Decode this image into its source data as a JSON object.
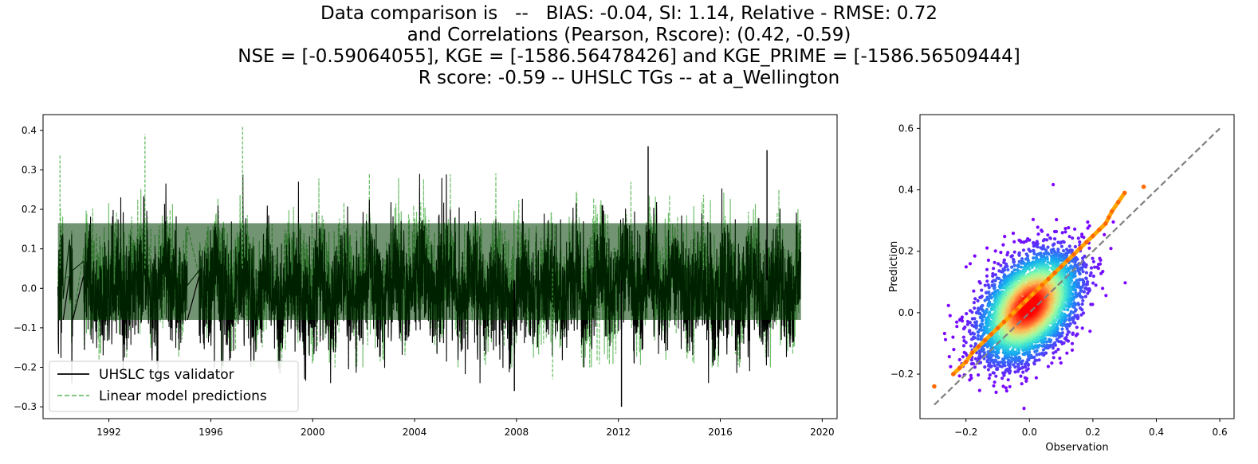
{
  "figure": {
    "title_lines": [
      "Data comparison is   --   BIAS: -0.04, SI: 1.14, Relative - RMSE: 0.72",
      "and Correlations (Pearson, Rscore): (0.42, -0.59)",
      "NSE = [-0.59064055], KGE = [-1586.56478426] and KGE_PRIME = [-1586.56509444]",
      "R score: -0.59 -- UHSLC TGs -- at a_Wellington"
    ]
  },
  "chart_data": [
    {
      "type": "line",
      "title": "",
      "xlabel": "",
      "ylabel": "",
      "xlim": [
        "1989-06-01",
        "2020-08-01"
      ],
      "ylim": [
        -0.33,
        0.44
      ],
      "xticks": [
        "1992",
        "1996",
        "2000",
        "2004",
        "2008",
        "2012",
        "2016",
        "2020"
      ],
      "yticks": [
        "−0.3",
        "−0.2",
        "−0.1",
        "0.0",
        "0.1",
        "0.2",
        "0.3",
        "0.4"
      ],
      "grid": false,
      "legend": {
        "position": "lower-left"
      },
      "data_gaps": [
        [
          "1990-03-15",
          "1990-06-15"
        ],
        [
          "1990-08-01",
          "1991-01-01"
        ],
        [
          "1995-02-01",
          "1995-07-15"
        ]
      ],
      "series": [
        {
          "name": "UHSLC tgs validator",
          "color": "#000000",
          "style": "solid",
          "x_range": [
            "1990-01-01",
            "2019-03-01"
          ],
          "typical_range": [
            -0.12,
            0.19
          ],
          "extremes": [
            {
              "x": "2012-02-15",
              "y": -0.3
            },
            {
              "x": "2013-03-01",
              "y": 0.36
            },
            {
              "x": "2017-11-01",
              "y": 0.35
            },
            {
              "x": "2007-12-01",
              "y": -0.26
            }
          ]
        },
        {
          "name": "Linear model predictions",
          "color": "#4daf4a",
          "style": "dashed",
          "x_range": [
            "1990-01-01",
            "2019-03-01"
          ],
          "typical_range": [
            -0.1,
            0.22
          ],
          "extremes": [
            {
              "x": "1997-04-01",
              "y": 0.41
            },
            {
              "x": "1990-02-01",
              "y": 0.34
            },
            {
              "x": "1993-06-01",
              "y": 0.39
            },
            {
              "x": "2009-06-01",
              "y": -0.23
            }
          ]
        }
      ]
    },
    {
      "type": "scatter",
      "title": "",
      "xlabel": "Observation",
      "ylabel": "Prediction",
      "xlim": [
        -0.345,
        0.645
      ],
      "ylim": [
        -0.345,
        0.645
      ],
      "xticks": [
        "−0.2",
        "0.0",
        "0.2",
        "0.4",
        "0.6"
      ],
      "yticks": [
        "−0.2",
        "0.0",
        "0.2",
        "0.4",
        "0.6"
      ],
      "grid": false,
      "colormap": "rainbow (density)",
      "cloud": {
        "center": [
          0.0,
          0.02
        ],
        "spread_x": 0.08,
        "spread_y": 0.09,
        "pearson": 0.42
      },
      "reference_line": {
        "color": "#808080",
        "style": "dashed",
        "points": [
          [
            -0.3,
            -0.3
          ],
          [
            0.6,
            0.6
          ]
        ]
      },
      "quantile_points": {
        "color": "#ffa500",
        "points": [
          [
            -0.3,
            -0.24
          ],
          [
            -0.24,
            -0.2
          ],
          [
            -0.22,
            -0.18
          ],
          [
            -0.2,
            -0.16
          ],
          [
            -0.18,
            -0.13
          ],
          [
            -0.16,
            -0.11
          ],
          [
            -0.14,
            -0.09
          ],
          [
            -0.12,
            -0.07
          ],
          [
            -0.1,
            -0.05
          ],
          [
            -0.08,
            -0.03
          ],
          [
            -0.06,
            -0.01
          ],
          [
            -0.04,
            0.01
          ],
          [
            -0.02,
            0.03
          ],
          [
            0.0,
            0.05
          ],
          [
            0.02,
            0.07
          ],
          [
            0.04,
            0.09
          ],
          [
            0.06,
            0.11
          ],
          [
            0.08,
            0.13
          ],
          [
            0.1,
            0.15
          ],
          [
            0.12,
            0.17
          ],
          [
            0.14,
            0.19
          ],
          [
            0.16,
            0.21
          ],
          [
            0.18,
            0.23
          ],
          [
            0.2,
            0.25
          ],
          [
            0.22,
            0.27
          ],
          [
            0.24,
            0.29
          ],
          [
            0.25,
            0.31
          ],
          [
            0.26,
            0.33
          ],
          [
            0.28,
            0.36
          ],
          [
            0.3,
            0.39
          ],
          [
            0.36,
            0.41
          ]
        ]
      }
    }
  ]
}
